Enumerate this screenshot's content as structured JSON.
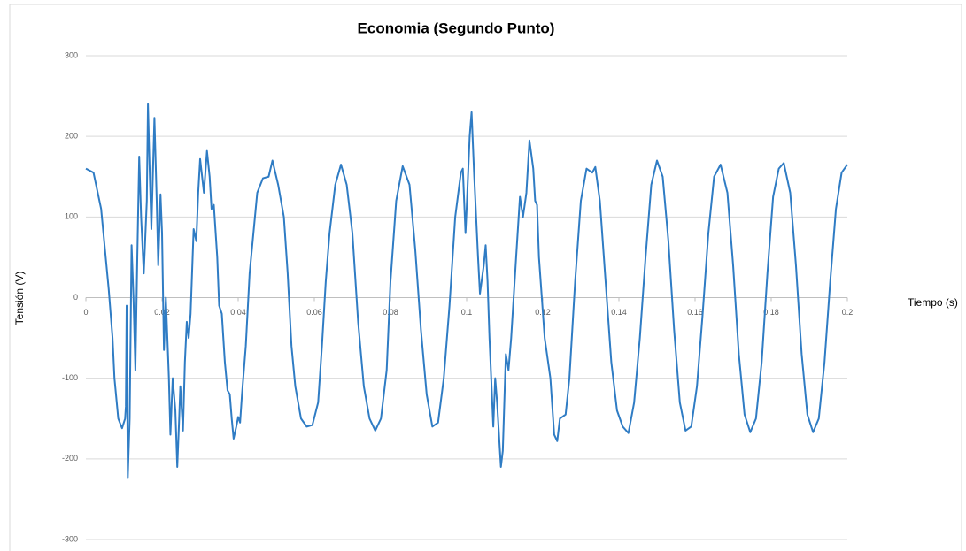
{
  "chart_data": {
    "type": "line",
    "title": "Economia (Segundo Punto)",
    "x_label": "Tiempo (s)",
    "y_label": "Tensión (V)",
    "color": "#2f7cc4",
    "x": [
      0,
      0.002,
      0.004,
      0.005,
      0.006,
      0.007,
      0.0075,
      0.0085,
      0.0095,
      0.0103,
      0.0105,
      0.0107,
      0.011,
      0.0115,
      0.012,
      0.0125,
      0.013,
      0.0135,
      0.014,
      0.0145,
      0.0152,
      0.016,
      0.0163,
      0.0168,
      0.0172,
      0.018,
      0.0186,
      0.019,
      0.0196,
      0.02,
      0.0205,
      0.021,
      0.0218,
      0.0222,
      0.0228,
      0.0235,
      0.024,
      0.0245,
      0.0248,
      0.0255,
      0.026,
      0.0265,
      0.027,
      0.0275,
      0.0283,
      0.029,
      0.0295,
      0.03,
      0.031,
      0.0318,
      0.0325,
      0.033,
      0.0336,
      0.0345,
      0.035,
      0.0357,
      0.0365,
      0.0372,
      0.0378,
      0.0383,
      0.0388,
      0.0395,
      0.04,
      0.0405,
      0.041,
      0.042,
      0.043,
      0.044,
      0.045,
      0.0465,
      0.048,
      0.049,
      0.0505,
      0.052,
      0.053,
      0.054,
      0.055,
      0.0565,
      0.058,
      0.0595,
      0.061,
      0.062,
      0.063,
      0.064,
      0.0655,
      0.067,
      0.0685,
      0.07,
      0.0715,
      0.073,
      0.0745,
      0.076,
      0.0775,
      0.079,
      0.08,
      0.0815,
      0.0832,
      0.085,
      0.0865,
      0.088,
      0.0895,
      0.091,
      0.0925,
      0.094,
      0.0955,
      0.097,
      0.0985,
      0.099,
      0.0997,
      0.1,
      0.1008,
      0.1013,
      0.102,
      0.103,
      0.1035,
      0.1045,
      0.105,
      0.1055,
      0.106,
      0.107,
      0.1075,
      0.108,
      0.109,
      0.1095,
      0.1103,
      0.111,
      0.1117,
      0.113,
      0.114,
      0.1148,
      0.1157,
      0.1165,
      0.1175,
      0.118,
      0.1185,
      0.119,
      0.1205,
      0.122,
      0.123,
      0.1238,
      0.1245,
      0.126,
      0.127,
      0.1285,
      0.13,
      0.1315,
      0.133,
      0.1338,
      0.135,
      0.1365,
      0.138,
      0.1395,
      0.141,
      0.1425,
      0.144,
      0.1455,
      0.147,
      0.1485,
      0.15,
      0.1515,
      0.153,
      0.1545,
      0.156,
      0.1575,
      0.159,
      0.1605,
      0.162,
      0.1635,
      0.165,
      0.1667,
      0.1685,
      0.17,
      0.1715,
      0.173,
      0.1745,
      0.176,
      0.1775,
      0.179,
      0.1805,
      0.182,
      0.1833,
      0.185,
      0.1865,
      0.188,
      0.1895,
      0.191,
      0.1925,
      0.194,
      0.1955,
      0.197,
      0.1985,
      0.2
    ],
    "values": [
      160,
      155,
      110,
      60,
      10,
      -50,
      -100,
      -150,
      -162,
      -150,
      -135,
      -10,
      -224,
      -150,
      65,
      0,
      -90,
      50,
      175,
      100,
      30,
      120,
      240,
      150,
      85,
      223,
      120,
      40,
      128,
      80,
      -65,
      0,
      -100,
      -170,
      -100,
      -140,
      -210,
      -150,
      -110,
      -165,
      -80,
      -30,
      -50,
      -20,
      85,
      70,
      130,
      172,
      130,
      182,
      150,
      110,
      115,
      50,
      -10,
      -20,
      -80,
      -115,
      -120,
      -150,
      -175,
      -160,
      -148,
      -155,
      -120,
      -60,
      30,
      80,
      130,
      148,
      150,
      170,
      140,
      100,
      30,
      -60,
      -110,
      -150,
      -160,
      -158,
      -130,
      -60,
      20,
      80,
      140,
      165,
      140,
      80,
      -30,
      -110,
      -150,
      -165,
      -150,
      -90,
      20,
      120,
      163,
      140,
      60,
      -40,
      -120,
      -160,
      -155,
      -100,
      -10,
      100,
      155,
      160,
      80,
      110,
      200,
      230,
      150,
      50,
      5,
      40,
      65,
      20,
      -50,
      -160,
      -100,
      -130,
      -210,
      -190,
      -70,
      -90,
      -50,
      50,
      125,
      100,
      130,
      195,
      160,
      120,
      115,
      50,
      -50,
      -100,
      -170,
      -178,
      -150,
      -145,
      -100,
      20,
      120,
      160,
      155,
      162,
      120,
      20,
      -80,
      -140,
      -160,
      -168,
      -130,
      -50,
      50,
      140,
      170,
      150,
      70,
      -40,
      -130,
      -165,
      -160,
      -110,
      -20,
      80,
      150,
      165,
      130,
      40,
      -70,
      -145,
      -167,
      -150,
      -80,
      30,
      125,
      160,
      167,
      130,
      40,
      -70,
      -145,
      -167,
      -150,
      -80,
      20,
      110,
      155,
      165
    ],
    "xlim": [
      0,
      0.2
    ],
    "xticks": [
      0,
      0.02,
      0.04,
      0.06,
      0.08,
      0.1,
      0.12,
      0.14,
      0.16,
      0.18,
      0.2
    ],
    "ylim": [
      -300,
      300
    ],
    "yticks": [
      -300,
      -200,
      -100,
      0,
      100,
      200,
      300
    ],
    "grid": true
  }
}
